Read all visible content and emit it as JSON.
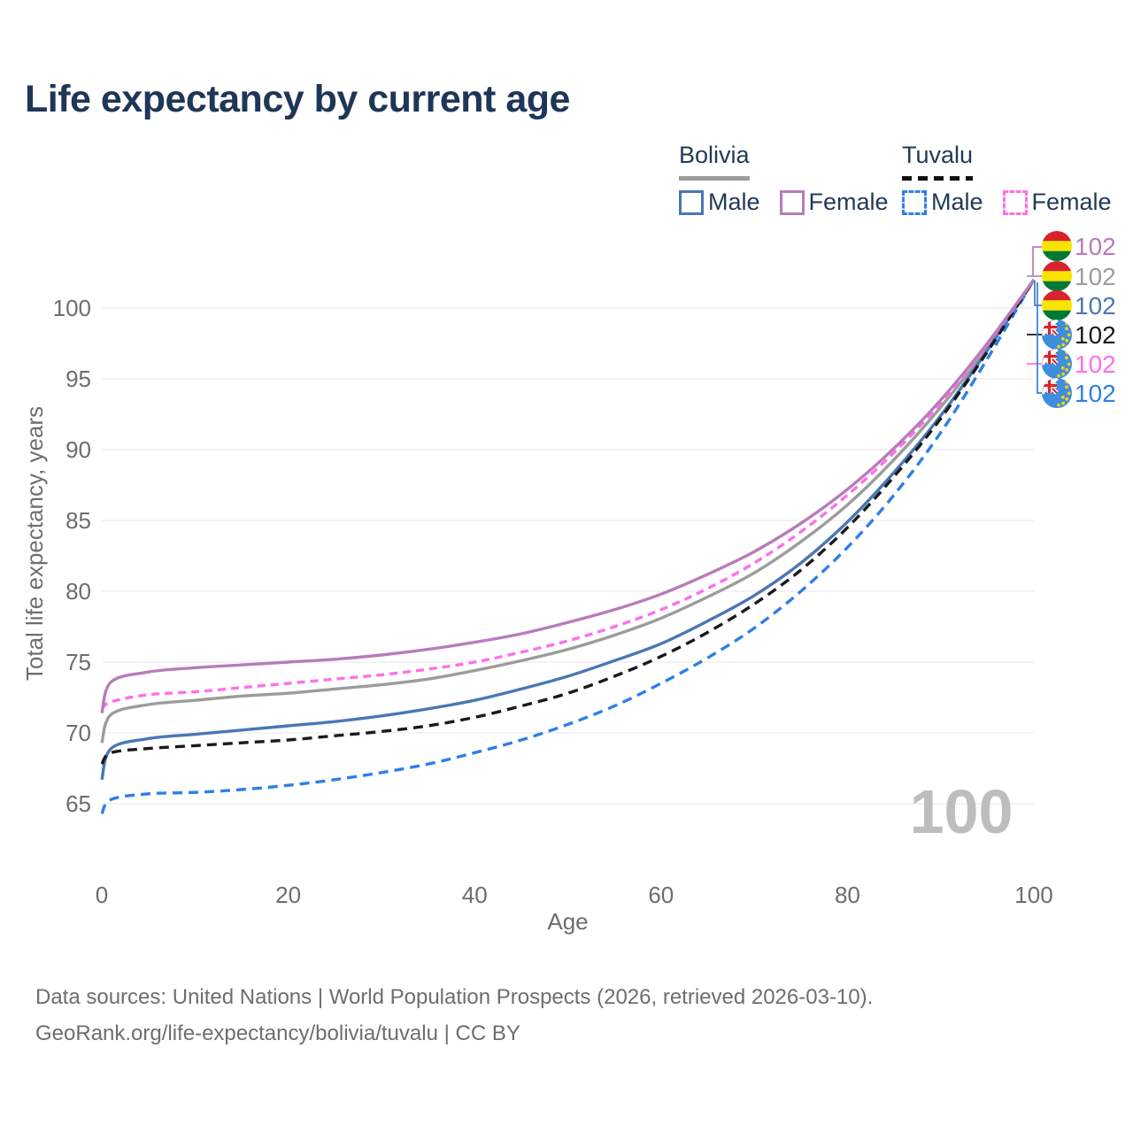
{
  "title": "Life expectancy by current age",
  "legend": {
    "groups": [
      {
        "name": "Bolivia",
        "underline": "solid",
        "underline_color": "#9b9b9b",
        "items": [
          {
            "label": "Male",
            "color": "#4a77b4",
            "dashed": false
          },
          {
            "label": "Female",
            "color": "#b77cba",
            "dashed": false
          }
        ]
      },
      {
        "name": "Tuvalu",
        "underline": "dashed",
        "underline_color": "#111111",
        "items": [
          {
            "label": "Male",
            "color": "#2e7fe8",
            "dashed": true
          },
          {
            "label": "Female",
            "color": "#ff70e8",
            "dashed": true
          }
        ]
      }
    ]
  },
  "chart_data": {
    "type": "line",
    "title": "Life expectancy by current age",
    "xlabel": "Age",
    "ylabel": "Total life expectancy, years",
    "x_ticks": [
      0,
      20,
      40,
      60,
      80,
      100
    ],
    "y_ticks": [
      65,
      70,
      75,
      80,
      85,
      90,
      95,
      100
    ],
    "xlim": [
      0,
      100
    ],
    "ylim": [
      63.5,
      103
    ],
    "grid": "horizontal",
    "legend_position": "top-right",
    "ages": [
      0,
      1,
      5,
      10,
      15,
      20,
      25,
      30,
      35,
      40,
      45,
      50,
      55,
      60,
      65,
      70,
      75,
      80,
      85,
      90,
      95,
      100
    ],
    "series": [
      {
        "id": "bolivia-female",
        "country": "Bolivia",
        "sex": "Female",
        "flag": "bolivia",
        "color": "#b77cba",
        "dash": "",
        "end_label": "102",
        "values": [
          71.4,
          73.6,
          74.3,
          74.6,
          74.8,
          75.0,
          75.2,
          75.5,
          75.9,
          76.4,
          77.0,
          77.8,
          78.7,
          79.8,
          81.2,
          82.8,
          84.8,
          87.2,
          90.1,
          93.5,
          97.5,
          102
        ]
      },
      {
        "id": "bolivia-both",
        "country": "Bolivia",
        "sex": "Both sexes",
        "flag": "bolivia",
        "color": "#9c9c9c",
        "dash": "",
        "end_label": "102",
        "values": [
          69.3,
          71.3,
          72.0,
          72.3,
          72.6,
          72.8,
          73.1,
          73.4,
          73.8,
          74.4,
          75.1,
          75.9,
          76.9,
          78.1,
          79.6,
          81.3,
          83.5,
          86.1,
          89.3,
          93.0,
          97.2,
          102
        ]
      },
      {
        "id": "bolivia-male",
        "country": "Bolivia",
        "sex": "Male",
        "flag": "bolivia",
        "color": "#4a77b4",
        "dash": "",
        "end_label": "102",
        "values": [
          66.7,
          68.9,
          69.6,
          69.9,
          70.2,
          70.5,
          70.8,
          71.2,
          71.7,
          72.3,
          73.1,
          74.0,
          75.1,
          76.3,
          77.9,
          79.7,
          82.0,
          84.9,
          88.4,
          92.4,
          97.0,
          102
        ]
      },
      {
        "id": "tuvalu-both",
        "country": "Tuvalu",
        "sex": "Both sexes",
        "flag": "tuvalu",
        "color": "#1a1a1a",
        "dash": "11 7",
        "end_label": "102",
        "values": [
          67.8,
          68.6,
          68.9,
          69.1,
          69.3,
          69.5,
          69.8,
          70.1,
          70.5,
          71.1,
          71.9,
          72.8,
          74.0,
          75.4,
          77.1,
          79.1,
          81.5,
          84.5,
          88.1,
          92.2,
          96.9,
          102
        ]
      },
      {
        "id": "tuvalu-female",
        "country": "Tuvalu",
        "sex": "Female",
        "flag": "tuvalu",
        "color": "#ff70e8",
        "dash": "9 6",
        "end_label": "102",
        "values": [
          71.7,
          72.2,
          72.7,
          72.9,
          73.2,
          73.5,
          73.8,
          74.1,
          74.5,
          75.0,
          75.7,
          76.5,
          77.5,
          78.7,
          80.2,
          82.0,
          84.2,
          86.8,
          89.8,
          93.3,
          97.4,
          102
        ]
      },
      {
        "id": "tuvalu-male",
        "country": "Tuvalu",
        "sex": "Male",
        "flag": "tuvalu",
        "color": "#2e7fe8",
        "dash": "11 7",
        "end_label": "102",
        "values": [
          64.3,
          65.3,
          65.7,
          65.8,
          66.0,
          66.3,
          66.7,
          67.2,
          67.8,
          68.6,
          69.5,
          70.6,
          71.9,
          73.5,
          75.3,
          77.4,
          80.0,
          83.1,
          86.8,
          91.2,
          96.4,
          102
        ]
      }
    ],
    "annotations": {
      "age_counter_watermark": "100"
    }
  },
  "watermark": "100",
  "footer": {
    "line1": "Data sources: United Nations | World Population Prospects (2026, retrieved 2026-03-10).",
    "line2": "GeoRank.org/life-expectancy/bolivia/tuvalu | CC BY"
  },
  "colors": {
    "title_text": "#1e3657",
    "axis_text": "#6d6d6d",
    "gridline": "#ececec",
    "watermark": "#bdbdbd",
    "bolivia_flag": [
      "#d8232a",
      "#f9e300",
      "#007934"
    ],
    "tuvalu_flag_field": "#3e8ede",
    "tuvalu_flag_stars": "#ffd100"
  }
}
